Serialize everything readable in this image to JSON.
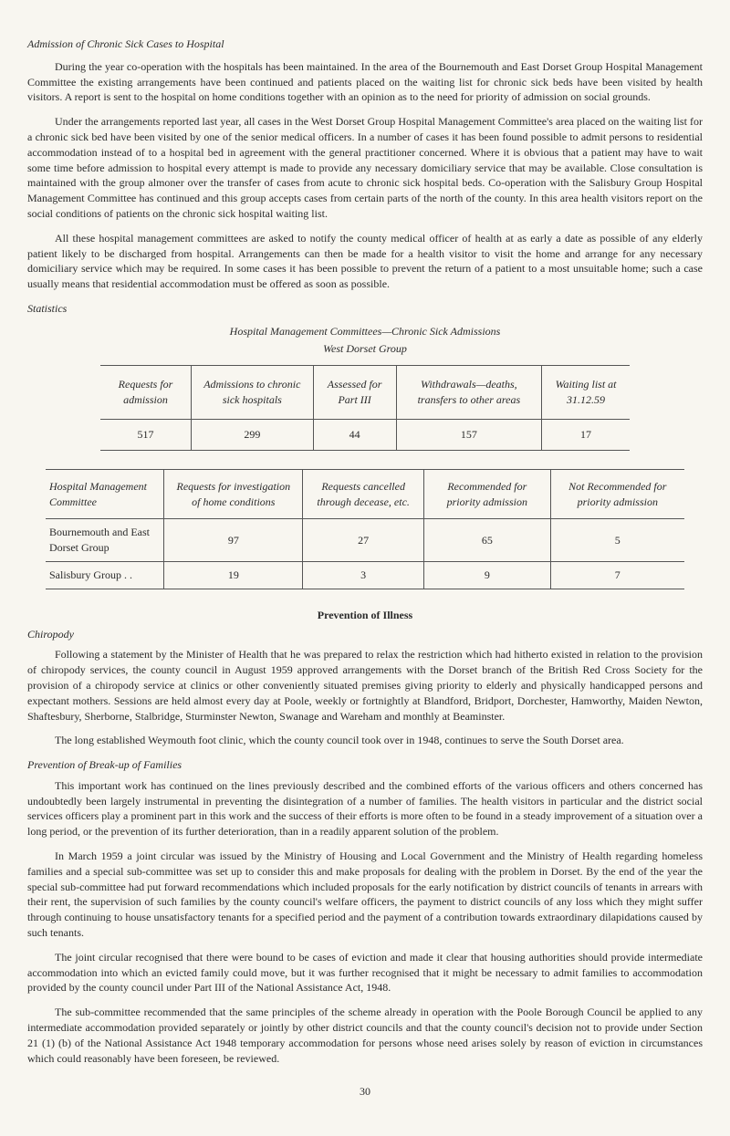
{
  "title1": "Admission of Chronic Sick Cases to Hospital",
  "p1": "During the year co-operation with the hospitals has been maintained. In the area of the Bournemouth and East Dorset Group Hospital Management Committee the existing arrangements have been continued and patients placed on the waiting list for chronic sick beds have been visited by health visitors. A report is sent to the hospital on home conditions together with an opinion as to the need for priority of admission on social grounds.",
  "p2": "Under the arrangements reported last year, all cases in the West Dorset Group Hospital Management Committee's area placed on the waiting list for a chronic sick bed have been visited by one of the senior medical officers. In a number of cases it has been found possible to admit persons to residential accommodation instead of to a hospital bed in agreement with the general practitioner concerned. Where it is obvious that a patient may have to wait some time before admission to hospital every attempt is made to provide any necessary domiciliary service that may be available. Close consultation is maintained with the group almoner over the transfer of cases from acute to chronic sick hospital beds. Co-operation with the Salisbury Group Hospital Management Committee has continued and this group accepts cases from certain parts of the north of the county. In this area health visitors report on the social conditions of patients on the chronic sick hospital waiting list.",
  "p3": "All these hospital management committees are asked to notify the county medical officer of health at as early a date as possible of any elderly patient likely to be discharged from hospital. Arrangements can then be made for a health visitor to visit the home and arrange for any necessary domiciliary service which may be required. In some cases it has been possible to prevent the return of a patient to a most unsuitable home; such a case usually means that residential accommodation must be offered as soon as possible.",
  "stats_label": "Statistics",
  "table1": {
    "title": "Hospital Management Committees—Chronic Sick Admissions",
    "subtitle": "West Dorset Group",
    "headers": [
      "Requests for admission",
      "Admissions to chronic sick hospitals",
      "Assessed for Part III",
      "Withdrawals—deaths, transfers to other areas",
      "Waiting list at 31.12.59"
    ],
    "row": [
      "517",
      "299",
      "44",
      "157",
      "17"
    ]
  },
  "table2": {
    "headers": [
      "Hospital Management Committee",
      "Requests for investigation of home conditions",
      "Requests cancelled through decease, etc.",
      "Recommended for priority admission",
      "Not Recommended for priority admission"
    ],
    "rows": [
      [
        "Bournemouth and East Dorset Group",
        "97",
        "27",
        "65",
        "5"
      ],
      [
        "Salisbury Group . .",
        "19",
        "3",
        "9",
        "7"
      ]
    ]
  },
  "prevention_title": "Prevention of Illness",
  "chiropody_label": "Chiropody",
  "p4": "Following a statement by the Minister of Health that he was prepared to relax the restriction which had hitherto existed in relation to the provision of chiropody services, the county council in August 1959 approved arrangements with the Dorset branch of the British Red Cross Society for the provision of a chiropody service at clinics or other conveniently situated premises giving priority to elderly and physically handicapped persons and expectant mothers. Sessions are held almost every day at Poole, weekly or fortnightly at Blandford, Bridport, Dorchester, Hamworthy, Maiden Newton, Shaftesbury, Sherborne, Stalbridge, Sturminster Newton, Swanage and Wareham and monthly at Beaminster.",
  "p5": "The long established Weymouth foot clinic, which the county council took over in 1948, continues to serve the South Dorset area.",
  "breakup_label": "Prevention of Break-up of Families",
  "p6": "This important work has continued on the lines previously described and the combined efforts of the various officers and others concerned has undoubtedly been largely instrumental in preventing the disintegration of a number of families. The health visitors in particular and the district social services officers play a prominent part in this work and the success of their efforts is more often to be found in a steady improvement of a situation over a long period, or the prevention of its further deterioration, than in a readily apparent solution of the problem.",
  "p7": "In March 1959 a joint circular was issued by the Ministry of Housing and Local Government and the Ministry of Health regarding homeless families and a special sub-committee was set up to consider this and make proposals for dealing with the problem in Dorset. By the end of the year the special sub-committee had put forward recommendations which included proposals for the early notification by district councils of tenants in arrears with their rent, the supervision of such families by the county council's welfare officers, the payment to district councils of any loss which they might suffer through continuing to house unsatisfactory tenants for a specified period and the payment of a contribution towards extraordinary dilapidations caused by such tenants.",
  "p8": "The joint circular recognised that there were bound to be cases of eviction and made it clear that housing authorities should provide intermediate accommodation into which an evicted family could move, but it was further recognised that it might be necessary to admit families to accommodation provided by the county council under Part III of the National Assistance Act, 1948.",
  "p9": "The sub-committee recommended that the same principles of the scheme already in operation with the Poole Borough Council be applied to any intermediate accommodation provided separately or jointly by other district councils and that the county council's decision not to provide under Section 21 (1) (b) of the National Assistance Act 1948 temporary accommodation for persons whose need arises solely by reason of eviction in circumstances which could reasonably have been foreseen, be reviewed.",
  "page_num": "30"
}
